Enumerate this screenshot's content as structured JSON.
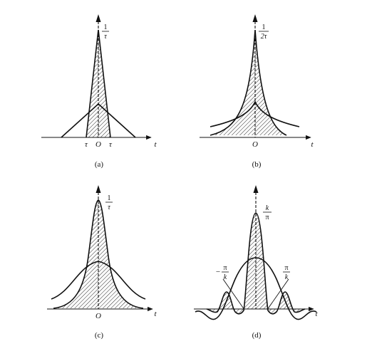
{
  "panels": {
    "a": {
      "caption": "(a)",
      "axis_t": "t",
      "origin": "O",
      "tick_left": "τ",
      "tick_right": "τ",
      "peak_num": "1",
      "peak_den": "τ"
    },
    "b": {
      "caption": "(b)",
      "axis_t": "t",
      "origin": "O",
      "peak_num": "1",
      "peak_den": "2τ"
    },
    "c": {
      "caption": "(c)",
      "axis_t": "t",
      "origin": "O",
      "peak_num": "1",
      "peak_den": "τ"
    },
    "d": {
      "caption": "(d)",
      "axis_t": "t",
      "peak_num": "k",
      "peak_den": "π",
      "left_sign": "−",
      "left_num": "π",
      "left_den": "k",
      "right_num": "π",
      "right_den": "k"
    }
  },
  "colors": {
    "ink": "#111111",
    "background": "#ffffff"
  }
}
